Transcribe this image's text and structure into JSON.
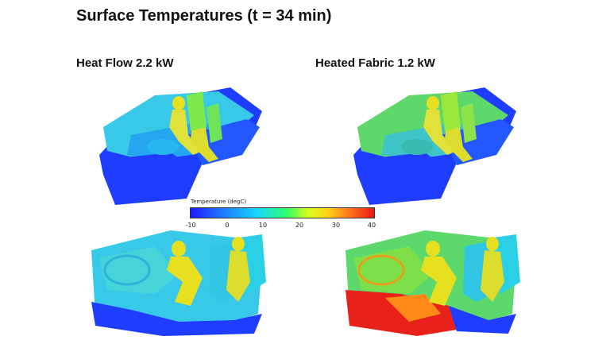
{
  "page": {
    "title": "Surface Temperatures (t = 34 min)"
  },
  "panels": [
    {
      "label": "Heat Flow 2.2 kW"
    },
    {
      "label": "Heated Fabric 1.2 kW"
    }
  ],
  "legend": {
    "title": "Temperature (degC)",
    "ticks": [
      "-10",
      "0",
      "10",
      "20",
      "30",
      "40"
    ],
    "colors": [
      "#1a1aff",
      "#1f7cff",
      "#19d6ff",
      "#2dff70",
      "#d8ff1a",
      "#ffd11a",
      "#ff7a1a",
      "#e81616"
    ]
  },
  "render_colors": {
    "cold_blue": "#1f3dff",
    "cyan": "#2fd6e0",
    "green": "#5be06a",
    "yellow": "#e6e020",
    "orange": "#ff8a1a",
    "red": "#e8221a"
  }
}
